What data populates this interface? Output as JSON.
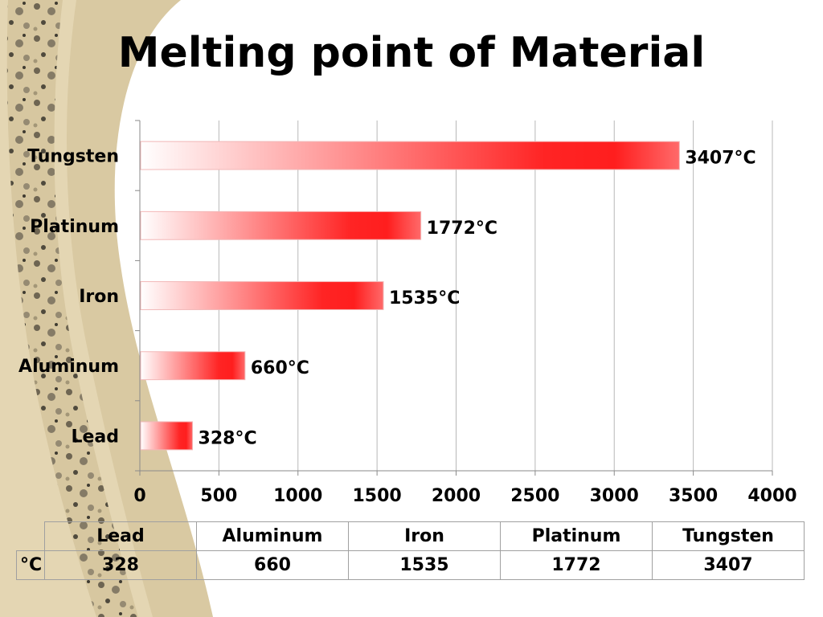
{
  "title": "Melting point of Material",
  "chart_data": {
    "type": "bar",
    "orientation": "horizontal",
    "categories": [
      "Tungsten",
      "Platinum",
      "Iron",
      "Aluminum",
      "Lead"
    ],
    "values": [
      3407,
      1772,
      1535,
      660,
      328
    ],
    "data_labels": [
      "3407°C",
      "1772°C",
      "1535°C",
      "660°C",
      "328°C"
    ],
    "xlim": [
      0,
      4000
    ],
    "x_ticks": [
      "0",
      "500",
      "1000",
      "1500",
      "2000",
      "2500",
      "3000",
      "3500",
      "4000"
    ],
    "grid": "vertical",
    "bar_color": "#ff2020",
    "title": "Melting point of Material"
  },
  "table": {
    "row_header": "°C",
    "columns": [
      "Lead",
      "Aluminum",
      "Iron",
      "Platinum",
      "Tungsten"
    ],
    "values": [
      "328",
      "660",
      "1535",
      "1772",
      "3407"
    ]
  }
}
